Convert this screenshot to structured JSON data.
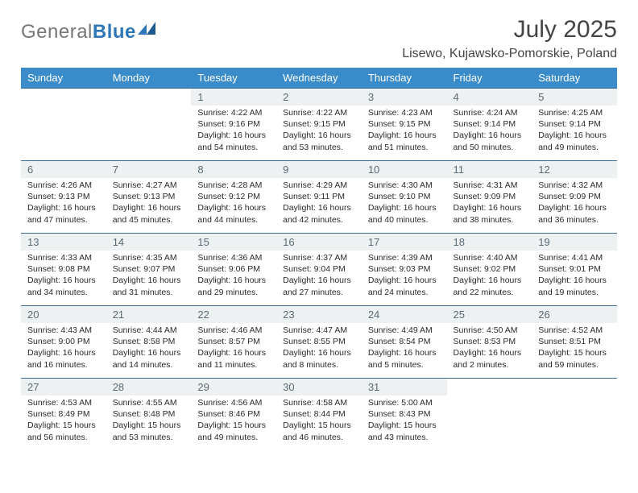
{
  "brand": {
    "part1": "General",
    "part2": "Blue"
  },
  "title": "July 2025",
  "location": "Lisewo, Kujawsko-Pomorskie, Poland",
  "colors": {
    "header_bg": "#3a8bc9",
    "header_fg": "#ffffff",
    "daynum_bg": "#eef1f2",
    "daynum_fg": "#5a6a74",
    "rule": "#3a6d96"
  },
  "weekdays": [
    "Sunday",
    "Monday",
    "Tuesday",
    "Wednesday",
    "Thursday",
    "Friday",
    "Saturday"
  ],
  "weeks": [
    [
      {
        "n": "",
        "sr": "",
        "ss": "",
        "dl": ""
      },
      {
        "n": "",
        "sr": "",
        "ss": "",
        "dl": ""
      },
      {
        "n": "1",
        "sr": "4:22 AM",
        "ss": "9:16 PM",
        "dl": "16 hours and 54 minutes."
      },
      {
        "n": "2",
        "sr": "4:22 AM",
        "ss": "9:15 PM",
        "dl": "16 hours and 53 minutes."
      },
      {
        "n": "3",
        "sr": "4:23 AM",
        "ss": "9:15 PM",
        "dl": "16 hours and 51 minutes."
      },
      {
        "n": "4",
        "sr": "4:24 AM",
        "ss": "9:14 PM",
        "dl": "16 hours and 50 minutes."
      },
      {
        "n": "5",
        "sr": "4:25 AM",
        "ss": "9:14 PM",
        "dl": "16 hours and 49 minutes."
      }
    ],
    [
      {
        "n": "6",
        "sr": "4:26 AM",
        "ss": "9:13 PM",
        "dl": "16 hours and 47 minutes."
      },
      {
        "n": "7",
        "sr": "4:27 AM",
        "ss": "9:13 PM",
        "dl": "16 hours and 45 minutes."
      },
      {
        "n": "8",
        "sr": "4:28 AM",
        "ss": "9:12 PM",
        "dl": "16 hours and 44 minutes."
      },
      {
        "n": "9",
        "sr": "4:29 AM",
        "ss": "9:11 PM",
        "dl": "16 hours and 42 minutes."
      },
      {
        "n": "10",
        "sr": "4:30 AM",
        "ss": "9:10 PM",
        "dl": "16 hours and 40 minutes."
      },
      {
        "n": "11",
        "sr": "4:31 AM",
        "ss": "9:09 PM",
        "dl": "16 hours and 38 minutes."
      },
      {
        "n": "12",
        "sr": "4:32 AM",
        "ss": "9:09 PM",
        "dl": "16 hours and 36 minutes."
      }
    ],
    [
      {
        "n": "13",
        "sr": "4:33 AM",
        "ss": "9:08 PM",
        "dl": "16 hours and 34 minutes."
      },
      {
        "n": "14",
        "sr": "4:35 AM",
        "ss": "9:07 PM",
        "dl": "16 hours and 31 minutes."
      },
      {
        "n": "15",
        "sr": "4:36 AM",
        "ss": "9:06 PM",
        "dl": "16 hours and 29 minutes."
      },
      {
        "n": "16",
        "sr": "4:37 AM",
        "ss": "9:04 PM",
        "dl": "16 hours and 27 minutes."
      },
      {
        "n": "17",
        "sr": "4:39 AM",
        "ss": "9:03 PM",
        "dl": "16 hours and 24 minutes."
      },
      {
        "n": "18",
        "sr": "4:40 AM",
        "ss": "9:02 PM",
        "dl": "16 hours and 22 minutes."
      },
      {
        "n": "19",
        "sr": "4:41 AM",
        "ss": "9:01 PM",
        "dl": "16 hours and 19 minutes."
      }
    ],
    [
      {
        "n": "20",
        "sr": "4:43 AM",
        "ss": "9:00 PM",
        "dl": "16 hours and 16 minutes."
      },
      {
        "n": "21",
        "sr": "4:44 AM",
        "ss": "8:58 PM",
        "dl": "16 hours and 14 minutes."
      },
      {
        "n": "22",
        "sr": "4:46 AM",
        "ss": "8:57 PM",
        "dl": "16 hours and 11 minutes."
      },
      {
        "n": "23",
        "sr": "4:47 AM",
        "ss": "8:55 PM",
        "dl": "16 hours and 8 minutes."
      },
      {
        "n": "24",
        "sr": "4:49 AM",
        "ss": "8:54 PM",
        "dl": "16 hours and 5 minutes."
      },
      {
        "n": "25",
        "sr": "4:50 AM",
        "ss": "8:53 PM",
        "dl": "16 hours and 2 minutes."
      },
      {
        "n": "26",
        "sr": "4:52 AM",
        "ss": "8:51 PM",
        "dl": "15 hours and 59 minutes."
      }
    ],
    [
      {
        "n": "27",
        "sr": "4:53 AM",
        "ss": "8:49 PM",
        "dl": "15 hours and 56 minutes."
      },
      {
        "n": "28",
        "sr": "4:55 AM",
        "ss": "8:48 PM",
        "dl": "15 hours and 53 minutes."
      },
      {
        "n": "29",
        "sr": "4:56 AM",
        "ss": "8:46 PM",
        "dl": "15 hours and 49 minutes."
      },
      {
        "n": "30",
        "sr": "4:58 AM",
        "ss": "8:44 PM",
        "dl": "15 hours and 46 minutes."
      },
      {
        "n": "31",
        "sr": "5:00 AM",
        "ss": "8:43 PM",
        "dl": "15 hours and 43 minutes."
      },
      {
        "n": "",
        "sr": "",
        "ss": "",
        "dl": ""
      },
      {
        "n": "",
        "sr": "",
        "ss": "",
        "dl": ""
      }
    ]
  ],
  "labels": {
    "sunrise": "Sunrise:",
    "sunset": "Sunset:",
    "daylight": "Daylight:"
  }
}
